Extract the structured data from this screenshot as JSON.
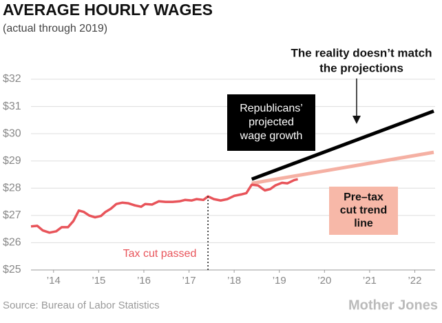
{
  "chart_data": {
    "type": "line",
    "title": "AVERAGE HOURLY WAGES",
    "subtitle": "(actual through 2019)",
    "source": "Source: Bureau of Labor Statistics",
    "logo": "Mother Jones",
    "xlim": [
      2014.0,
      2022.95
    ],
    "xticks": [
      {
        "value": 2014.5,
        "label": "’14"
      },
      {
        "value": 2015.5,
        "label": "’15"
      },
      {
        "value": 2016.5,
        "label": "’16"
      },
      {
        "value": 2017.5,
        "label": "’17"
      },
      {
        "value": 2018.5,
        "label": "’18"
      },
      {
        "value": 2019.5,
        "label": "’19"
      },
      {
        "value": 2020.5,
        "label": "’20"
      },
      {
        "value": 2021.5,
        "label": "’21"
      },
      {
        "value": 2022.5,
        "label": "’22"
      }
    ],
    "ylim": [
      25,
      32
    ],
    "yticks": [
      {
        "value": 25,
        "label": "$25"
      },
      {
        "value": 26,
        "label": "$26"
      },
      {
        "value": 27,
        "label": "$27"
      },
      {
        "value": 28,
        "label": "$28"
      },
      {
        "value": 29,
        "label": "$29"
      },
      {
        "value": 30,
        "label": "$30"
      },
      {
        "value": 31,
        "label": "$31"
      },
      {
        "value": 32,
        "label": "$32"
      }
    ],
    "grid": true,
    "series": [
      {
        "color": "#f5b0a3",
        "x": [
          2018.89,
          2022.92
        ],
        "values": [
          28.18,
          29.32
        ]
      },
      {
        "color": "#000000",
        "x": [
          2018.89,
          2022.92
        ],
        "values": [
          28.33,
          30.83
        ]
      },
      {
        "color": "#e8545a",
        "x": [
          2014.0,
          2014.14,
          2014.26,
          2014.41,
          2014.56,
          2014.68,
          2014.82,
          2014.94,
          2015.06,
          2015.17,
          2015.29,
          2015.42,
          2015.55,
          2015.65,
          2015.77,
          2015.89,
          2016.02,
          2016.15,
          2016.3,
          2016.44,
          2016.53,
          2016.68,
          2016.83,
          2016.98,
          2017.14,
          2017.29,
          2017.41,
          2017.56,
          2017.67,
          2017.82,
          2017.92,
          2018.05,
          2018.2,
          2018.35,
          2018.5,
          2018.65,
          2018.77,
          2018.89,
          2019.03,
          2019.18,
          2019.3,
          2019.41,
          2019.56,
          2019.68,
          2019.83,
          2019.91
        ],
        "values": [
          26.6,
          26.62,
          26.45,
          26.37,
          26.42,
          26.57,
          26.57,
          26.8,
          27.18,
          27.13,
          27.0,
          26.93,
          26.98,
          27.13,
          27.25,
          27.42,
          27.47,
          27.45,
          27.37,
          27.32,
          27.42,
          27.4,
          27.52,
          27.5,
          27.5,
          27.52,
          27.57,
          27.55,
          27.6,
          27.57,
          27.7,
          27.6,
          27.55,
          27.6,
          27.72,
          27.77,
          27.82,
          28.13,
          28.1,
          27.92,
          27.97,
          28.1,
          28.2,
          28.18,
          28.3,
          28.33
        ]
      }
    ],
    "annotations": [
      {
        "lines": [
          "The reality doesn’t match",
          "the projections"
        ]
      },
      {
        "lines": [
          "Republicans’",
          "projected",
          "wage growth"
        ]
      },
      {
        "lines": [
          "Pre–tax",
          "cut trend",
          "line"
        ]
      },
      {
        "lines": [
          "Tax cut passed"
        ],
        "x": 2017.92
      }
    ]
  }
}
